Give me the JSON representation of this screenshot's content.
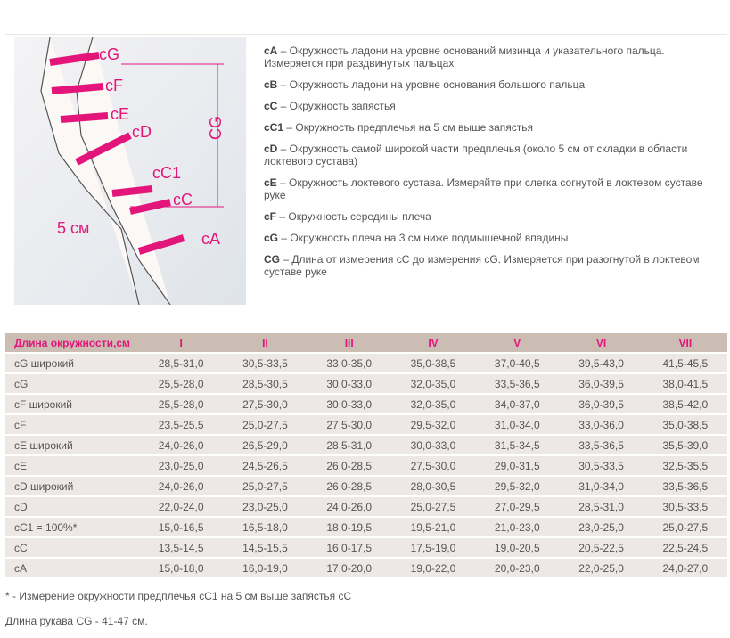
{
  "diagram": {
    "labels": [
      "cG",
      "cF",
      "cE",
      "cD",
      "cC1",
      "cC",
      "cA",
      "CG",
      "5 см"
    ],
    "accent": "#e4157a"
  },
  "definitions": [
    {
      "key": "cA",
      "text": " – Окружность ладони на уровне оснований мизинца и указательного пальца. Измеряется при раздвинутых пальцах"
    },
    {
      "key": "cB",
      "text": " – Окружность ладони на уровне основания большого пальца"
    },
    {
      "key": "cC",
      "text": " – Окружность запястья"
    },
    {
      "key": "cC1",
      "text": " – Окружность предплечья на 5 см выше запястья"
    },
    {
      "key": "cD",
      "text": " – Окружность самой широкой части предплечья (около 5 см от складки в области локтевого сустава)"
    },
    {
      "key": "cE",
      "text": " – Окружность локтевого сустава. Измеряйте при слегка согнутой в локтевом суставе руке"
    },
    {
      "key": "cF",
      "text": " – Окружность середины плеча"
    },
    {
      "key": "cG",
      "text": " – Окружность плеча на 3 см ниже подмышечной впадины"
    },
    {
      "key": "CG",
      "text": " – Длина от измерения cC до измерения cG. Измеряется при разогнутой в локтевом суставе руке"
    }
  ],
  "table": {
    "headers": [
      "Длина окружности,см",
      "I",
      "II",
      "III",
      "IV",
      "V",
      "VI",
      "VII"
    ],
    "rows": [
      [
        "cG широкий",
        "28,5-31,0",
        "30,5-33,5",
        "33,0-35,0",
        "35,0-38,5",
        "37,0-40,5",
        "39,5-43,0",
        "41,5-45,5"
      ],
      [
        "cG",
        "25,5-28,0",
        "28,5-30,5",
        "30,0-33,0",
        "32,0-35,0",
        "33,5-36,5",
        "36,0-39,5",
        "38,0-41,5"
      ],
      [
        "cF широкий",
        "25,5-28,0",
        "27,5-30,0",
        "30,0-33,0",
        "32,0-35,0",
        "34,0-37,0",
        "36,0-39,5",
        "38,5-42,0"
      ],
      [
        "cF",
        "23,5-25,5",
        "25,0-27,5",
        "27,5-30,0",
        "29,5-32,0",
        "31,0-34,0",
        "33,0-36,0",
        "35,0-38,5"
      ],
      [
        "cE широкий",
        "24,0-26,0",
        "26,5-29,0",
        "28,5-31,0",
        "30,0-33,0",
        "31,5-34,5",
        "33,5-36,5",
        "35,5-39,0"
      ],
      [
        "cE",
        "23,0-25,0",
        "24,5-26,5",
        "26,0-28,5",
        "27,5-30,0",
        "29,0-31,5",
        "30,5-33,5",
        "32,5-35,5"
      ],
      [
        "cD широкий",
        "24,0-26,0",
        "25,0-27,5",
        "26,0-28,5",
        "28,0-30,5",
        "29,5-32,0",
        "31,0-34,0",
        "33,5-36,5"
      ],
      [
        "cD",
        "22,0-24,0",
        "23,0-25,0",
        "24,0-26,0",
        "25,0-27,5",
        "27,0-29,5",
        "28,5-31,0",
        "30,5-33,5"
      ],
      [
        "cC1 = 100%*",
        "15,0-16,5",
        "16,5-18,0",
        "18,0-19,5",
        "19,5-21,0",
        "21,0-23,0",
        "23,0-25,0",
        "25,0-27,5"
      ],
      [
        "cC",
        "13,5-14,5",
        "14,5-15,5",
        "16,0-17,5",
        "17,5-19,0",
        "19,0-20,5",
        "20,5-22,5",
        "22,5-24,5"
      ],
      [
        "cA",
        "15,0-18,0",
        "16,0-19,0",
        "17,0-20,0",
        "19,0-22,0",
        "20,0-23,0",
        "22,0-25,0",
        "24,0-27,0"
      ]
    ]
  },
  "footnote": "* - Измерение окружности предплечья cC1 на 5 см выше запястья cC",
  "sleeve_length": "Длина рукава CG - 41-47 см."
}
